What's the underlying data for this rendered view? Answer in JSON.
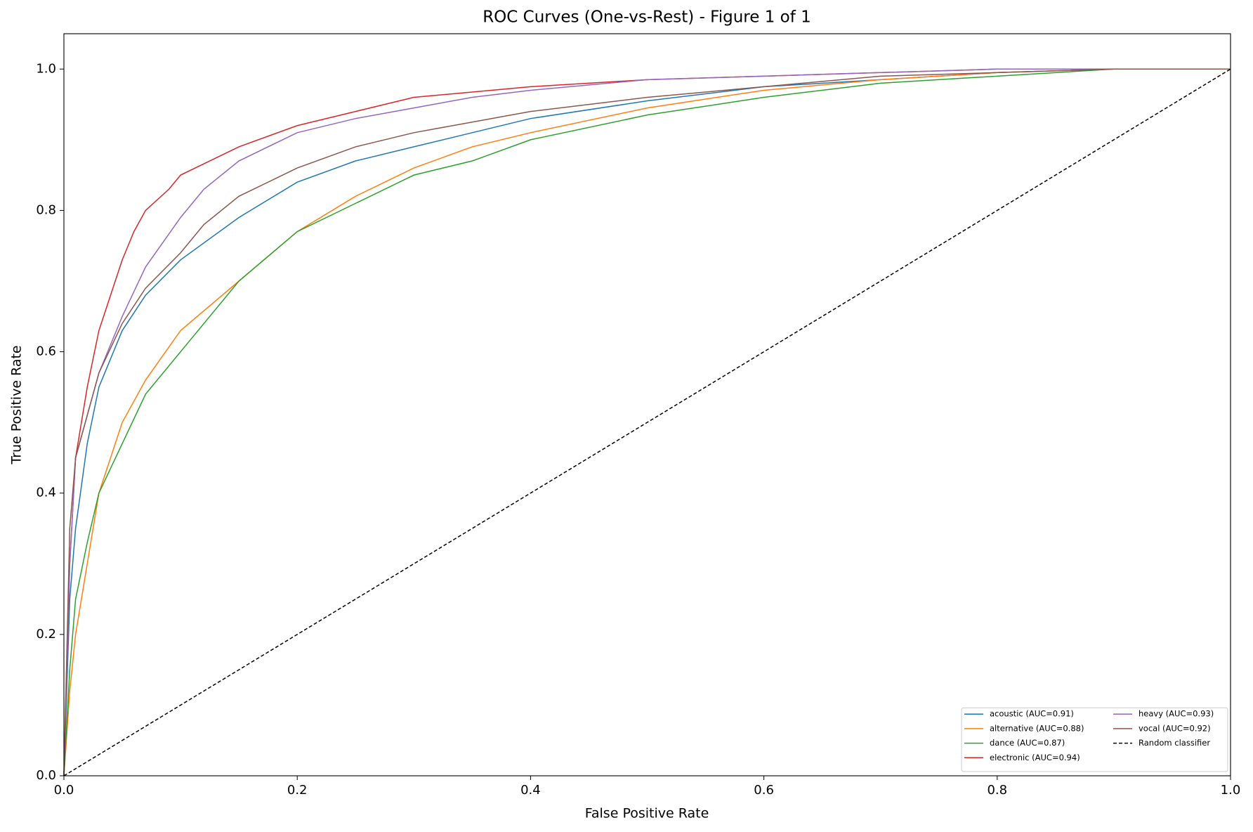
{
  "chart_data": {
    "type": "line",
    "title": "ROC Curves (One-vs-Rest) - Figure 1 of 1",
    "x_label": "False Positive Rate",
    "y_label": "True Positive Rate",
    "xlim": [
      0,
      1
    ],
    "ylim": [
      0,
      1.05
    ],
    "xticks": [
      {
        "value": 0,
        "label": "0.0"
      },
      0.2,
      0.4,
      0.6,
      0.8,
      {
        "value": 1,
        "label": "1.0"
      }
    ],
    "yticks": [
      {
        "value": 0,
        "label": "0.0"
      },
      0.2,
      0.4,
      0.6,
      0.8,
      {
        "value": 1,
        "label": "1.0"
      }
    ],
    "grid": false,
    "legend": "lower right",
    "legend_columns": 2,
    "series": [
      {
        "name": "acoustic (AUC=0.91)",
        "color": "#1f77b4",
        "x": [
          0,
          0.005,
          0.01,
          0.02,
          0.03,
          0.05,
          0.07,
          0.1,
          0.15,
          0.2,
          0.25,
          0.3,
          0.35,
          0.4,
          0.5,
          0.6,
          0.7,
          0.8,
          0.9,
          1
        ],
        "values": [
          0,
          0.25,
          0.35,
          0.47,
          0.55,
          0.63,
          0.68,
          0.73,
          0.79,
          0.84,
          0.87,
          0.89,
          0.91,
          0.93,
          0.955,
          0.975,
          0.985,
          0.995,
          1,
          1
        ]
      },
      {
        "name": "alternative (AUC=0.88)",
        "color": "#ff7f0e",
        "x": [
          0,
          0.005,
          0.01,
          0.02,
          0.03,
          0.05,
          0.07,
          0.1,
          0.15,
          0.2,
          0.25,
          0.3,
          0.35,
          0.4,
          0.5,
          0.6,
          0.7,
          0.8,
          0.9,
          1
        ],
        "values": [
          0,
          0.12,
          0.2,
          0.3,
          0.4,
          0.5,
          0.56,
          0.63,
          0.7,
          0.77,
          0.82,
          0.86,
          0.89,
          0.91,
          0.945,
          0.97,
          0.985,
          0.995,
          1,
          1
        ]
      },
      {
        "name": "dance (AUC=0.87)",
        "color": "#2ca02c",
        "x": [
          0,
          0.005,
          0.01,
          0.02,
          0.03,
          0.05,
          0.07,
          0.1,
          0.15,
          0.2,
          0.25,
          0.3,
          0.35,
          0.4,
          0.5,
          0.6,
          0.7,
          0.8,
          0.9,
          1
        ],
        "values": [
          0,
          0.15,
          0.25,
          0.33,
          0.4,
          0.47,
          0.54,
          0.6,
          0.7,
          0.77,
          0.81,
          0.85,
          0.87,
          0.9,
          0.935,
          0.96,
          0.98,
          0.99,
          1,
          1
        ]
      },
      {
        "name": "electronic (AUC=0.94)",
        "color": "#d62728",
        "x": [
          0,
          0.005,
          0.01,
          0.02,
          0.03,
          0.04,
          0.05,
          0.06,
          0.07,
          0.09,
          0.1,
          0.15,
          0.2,
          0.25,
          0.3,
          0.4,
          0.5,
          0.6,
          0.8,
          1
        ],
        "values": [
          0,
          0.3,
          0.45,
          0.55,
          0.63,
          0.68,
          0.73,
          0.77,
          0.8,
          0.83,
          0.85,
          0.89,
          0.92,
          0.94,
          0.96,
          0.975,
          0.985,
          0.99,
          1,
          1
        ]
      },
      {
        "name": "heavy (AUC=0.93)",
        "color": "#9467bd",
        "x": [
          0,
          0.005,
          0.01,
          0.03,
          0.05,
          0.07,
          0.1,
          0.12,
          0.15,
          0.2,
          0.25,
          0.3,
          0.35,
          0.4,
          0.5,
          0.6,
          0.7,
          0.8,
          1
        ],
        "values": [
          0,
          0.3,
          0.45,
          0.57,
          0.65,
          0.72,
          0.79,
          0.83,
          0.87,
          0.91,
          0.93,
          0.945,
          0.96,
          0.97,
          0.985,
          0.99,
          0.995,
          1,
          1
        ]
      },
      {
        "name": "vocal (AUC=0.92)",
        "color": "#8c564b",
        "x": [
          0,
          0.005,
          0.01,
          0.03,
          0.05,
          0.07,
          0.1,
          0.12,
          0.15,
          0.2,
          0.25,
          0.3,
          0.35,
          0.4,
          0.5,
          0.6,
          0.7,
          0.8,
          0.9,
          1
        ],
        "values": [
          0,
          0.35,
          0.45,
          0.57,
          0.64,
          0.69,
          0.74,
          0.78,
          0.82,
          0.86,
          0.89,
          0.91,
          0.925,
          0.94,
          0.96,
          0.975,
          0.99,
          0.995,
          1,
          1
        ]
      },
      {
        "name": "Random classifier",
        "color": "#000000",
        "dashed": true,
        "x": [
          0,
          1
        ],
        "values": [
          0,
          1
        ]
      }
    ]
  }
}
